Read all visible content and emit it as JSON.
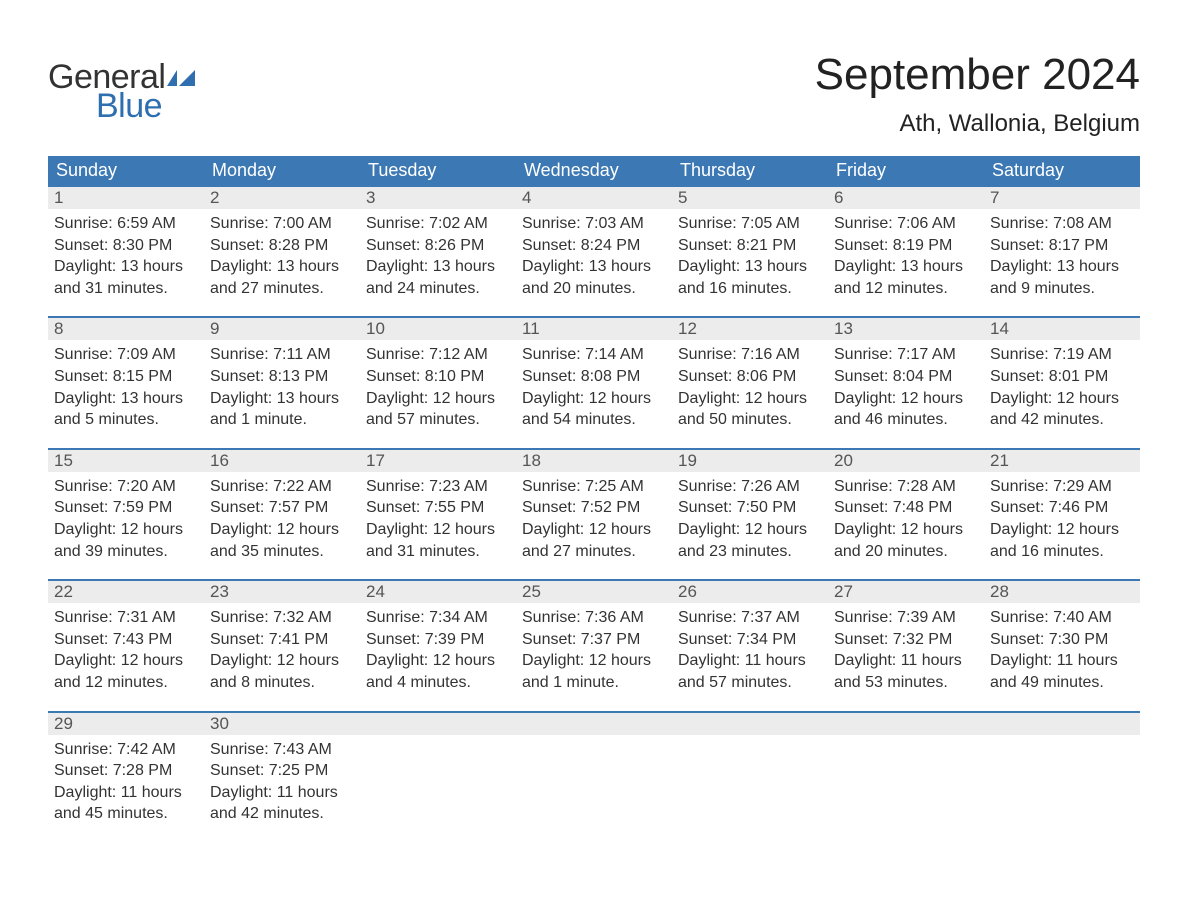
{
  "brand": {
    "word1": "General",
    "word2": "Blue",
    "flag_color": "#2f6fb0"
  },
  "title": "September 2024",
  "location": "Ath, Wallonia, Belgium",
  "colors": {
    "header_bg": "#3c78b4",
    "header_text": "#ffffff",
    "daynum_bg": "#ececec",
    "rule": "#3c78b4",
    "body_text": "#333333",
    "page_bg": "#ffffff"
  },
  "typography": {
    "title_fontsize": 44,
    "location_fontsize": 24,
    "dow_fontsize": 18,
    "daynum_fontsize": 17,
    "detail_fontsize": 16,
    "logo_fontsize": 34
  },
  "layout": {
    "columns": 7,
    "weeks": 5
  },
  "days_of_week": [
    "Sunday",
    "Monday",
    "Tuesday",
    "Wednesday",
    "Thursday",
    "Friday",
    "Saturday"
  ],
  "weeks": [
    [
      {
        "n": "1",
        "sunrise": "Sunrise: 6:59 AM",
        "sunset": "Sunset: 8:30 PM",
        "d1": "Daylight: 13 hours",
        "d2": "and 31 minutes."
      },
      {
        "n": "2",
        "sunrise": "Sunrise: 7:00 AM",
        "sunset": "Sunset: 8:28 PM",
        "d1": "Daylight: 13 hours",
        "d2": "and 27 minutes."
      },
      {
        "n": "3",
        "sunrise": "Sunrise: 7:02 AM",
        "sunset": "Sunset: 8:26 PM",
        "d1": "Daylight: 13 hours",
        "d2": "and 24 minutes."
      },
      {
        "n": "4",
        "sunrise": "Sunrise: 7:03 AM",
        "sunset": "Sunset: 8:24 PM",
        "d1": "Daylight: 13 hours",
        "d2": "and 20 minutes."
      },
      {
        "n": "5",
        "sunrise": "Sunrise: 7:05 AM",
        "sunset": "Sunset: 8:21 PM",
        "d1": "Daylight: 13 hours",
        "d2": "and 16 minutes."
      },
      {
        "n": "6",
        "sunrise": "Sunrise: 7:06 AM",
        "sunset": "Sunset: 8:19 PM",
        "d1": "Daylight: 13 hours",
        "d2": "and 12 minutes."
      },
      {
        "n": "7",
        "sunrise": "Sunrise: 7:08 AM",
        "sunset": "Sunset: 8:17 PM",
        "d1": "Daylight: 13 hours",
        "d2": "and 9 minutes."
      }
    ],
    [
      {
        "n": "8",
        "sunrise": "Sunrise: 7:09 AM",
        "sunset": "Sunset: 8:15 PM",
        "d1": "Daylight: 13 hours",
        "d2": "and 5 minutes."
      },
      {
        "n": "9",
        "sunrise": "Sunrise: 7:11 AM",
        "sunset": "Sunset: 8:13 PM",
        "d1": "Daylight: 13 hours",
        "d2": "and 1 minute."
      },
      {
        "n": "10",
        "sunrise": "Sunrise: 7:12 AM",
        "sunset": "Sunset: 8:10 PM",
        "d1": "Daylight: 12 hours",
        "d2": "and 57 minutes."
      },
      {
        "n": "11",
        "sunrise": "Sunrise: 7:14 AM",
        "sunset": "Sunset: 8:08 PM",
        "d1": "Daylight: 12 hours",
        "d2": "and 54 minutes."
      },
      {
        "n": "12",
        "sunrise": "Sunrise: 7:16 AM",
        "sunset": "Sunset: 8:06 PM",
        "d1": "Daylight: 12 hours",
        "d2": "and 50 minutes."
      },
      {
        "n": "13",
        "sunrise": "Sunrise: 7:17 AM",
        "sunset": "Sunset: 8:04 PM",
        "d1": "Daylight: 12 hours",
        "d2": "and 46 minutes."
      },
      {
        "n": "14",
        "sunrise": "Sunrise: 7:19 AM",
        "sunset": "Sunset: 8:01 PM",
        "d1": "Daylight: 12 hours",
        "d2": "and 42 minutes."
      }
    ],
    [
      {
        "n": "15",
        "sunrise": "Sunrise: 7:20 AM",
        "sunset": "Sunset: 7:59 PM",
        "d1": "Daylight: 12 hours",
        "d2": "and 39 minutes."
      },
      {
        "n": "16",
        "sunrise": "Sunrise: 7:22 AM",
        "sunset": "Sunset: 7:57 PM",
        "d1": "Daylight: 12 hours",
        "d2": "and 35 minutes."
      },
      {
        "n": "17",
        "sunrise": "Sunrise: 7:23 AM",
        "sunset": "Sunset: 7:55 PM",
        "d1": "Daylight: 12 hours",
        "d2": "and 31 minutes."
      },
      {
        "n": "18",
        "sunrise": "Sunrise: 7:25 AM",
        "sunset": "Sunset: 7:52 PM",
        "d1": "Daylight: 12 hours",
        "d2": "and 27 minutes."
      },
      {
        "n": "19",
        "sunrise": "Sunrise: 7:26 AM",
        "sunset": "Sunset: 7:50 PM",
        "d1": "Daylight: 12 hours",
        "d2": "and 23 minutes."
      },
      {
        "n": "20",
        "sunrise": "Sunrise: 7:28 AM",
        "sunset": "Sunset: 7:48 PM",
        "d1": "Daylight: 12 hours",
        "d2": "and 20 minutes."
      },
      {
        "n": "21",
        "sunrise": "Sunrise: 7:29 AM",
        "sunset": "Sunset: 7:46 PM",
        "d1": "Daylight: 12 hours",
        "d2": "and 16 minutes."
      }
    ],
    [
      {
        "n": "22",
        "sunrise": "Sunrise: 7:31 AM",
        "sunset": "Sunset: 7:43 PM",
        "d1": "Daylight: 12 hours",
        "d2": "and 12 minutes."
      },
      {
        "n": "23",
        "sunrise": "Sunrise: 7:32 AM",
        "sunset": "Sunset: 7:41 PM",
        "d1": "Daylight: 12 hours",
        "d2": "and 8 minutes."
      },
      {
        "n": "24",
        "sunrise": "Sunrise: 7:34 AM",
        "sunset": "Sunset: 7:39 PM",
        "d1": "Daylight: 12 hours",
        "d2": "and 4 minutes."
      },
      {
        "n": "25",
        "sunrise": "Sunrise: 7:36 AM",
        "sunset": "Sunset: 7:37 PM",
        "d1": "Daylight: 12 hours",
        "d2": "and 1 minute."
      },
      {
        "n": "26",
        "sunrise": "Sunrise: 7:37 AM",
        "sunset": "Sunset: 7:34 PM",
        "d1": "Daylight: 11 hours",
        "d2": "and 57 minutes."
      },
      {
        "n": "27",
        "sunrise": "Sunrise: 7:39 AM",
        "sunset": "Sunset: 7:32 PM",
        "d1": "Daylight: 11 hours",
        "d2": "and 53 minutes."
      },
      {
        "n": "28",
        "sunrise": "Sunrise: 7:40 AM",
        "sunset": "Sunset: 7:30 PM",
        "d1": "Daylight: 11 hours",
        "d2": "and 49 minutes."
      }
    ],
    [
      {
        "n": "29",
        "sunrise": "Sunrise: 7:42 AM",
        "sunset": "Sunset: 7:28 PM",
        "d1": "Daylight: 11 hours",
        "d2": "and 45 minutes."
      },
      {
        "n": "30",
        "sunrise": "Sunrise: 7:43 AM",
        "sunset": "Sunset: 7:25 PM",
        "d1": "Daylight: 11 hours",
        "d2": "and 42 minutes."
      },
      null,
      null,
      null,
      null,
      null
    ]
  ]
}
